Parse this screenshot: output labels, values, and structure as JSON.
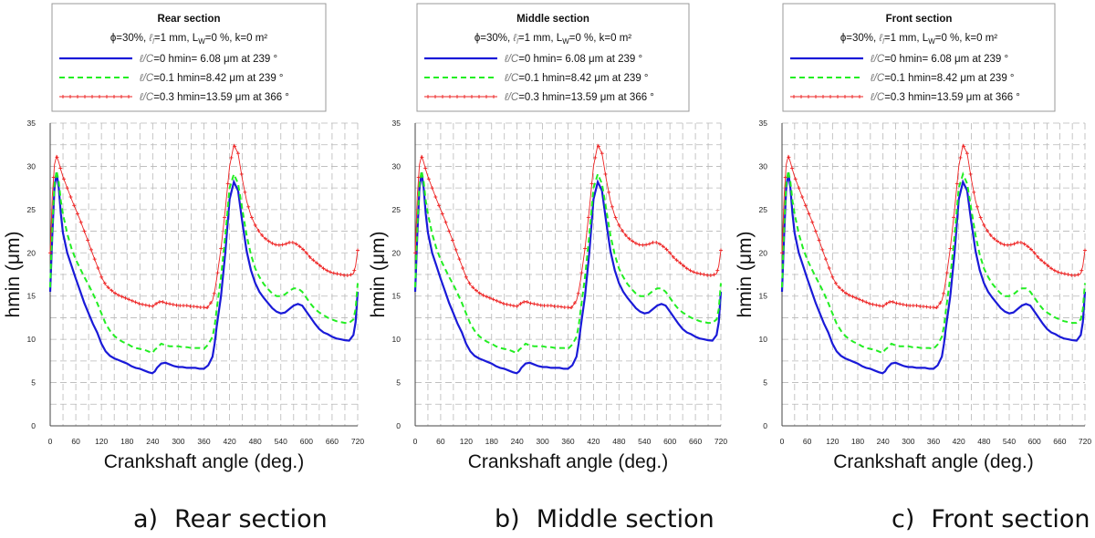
{
  "chart_data": [
    {
      "type": "line",
      "panel": "a",
      "title": "Rear section",
      "subtitle": "ϕ=30%, ℓl=1 mm, LW=0 %, k=0 m²",
      "subtitle_parts": {
        "phi": "ϕ=30%, ",
        "l_sym": "ℓ",
        "l_sub": "l",
        "l_val": "=1 mm, L",
        "lw_sub": "W",
        "rest": "=0 %, k=0 m²"
      },
      "xlabel": "Crankshaft angle (deg.)",
      "ylabel": "hmin (μm)",
      "xlim": [
        0,
        720
      ],
      "ylim": [
        0,
        35
      ],
      "xticks": [
        0,
        60,
        120,
        180,
        240,
        300,
        360,
        420,
        480,
        540,
        600,
        660,
        720
      ],
      "yticks": [
        0,
        5,
        10,
        15,
        20,
        25,
        30,
        35
      ],
      "grid": true,
      "legend_position": "top",
      "caption": {
        "letter": "a)",
        "text": "Rear section"
      },
      "series": [
        {
          "name": "ℓ/C=0",
          "legend": {
            "sym": "ℓ/C",
            "val": "=0",
            "info": "hmin= 6.08 μm at 239 °"
          },
          "color": "#1a1ad8",
          "style": "solid",
          "x": [
            0,
            5,
            10,
            15,
            20,
            25,
            30,
            40,
            50,
            60,
            70,
            80,
            90,
            100,
            110,
            120,
            130,
            140,
            150,
            160,
            170,
            180,
            190,
            200,
            210,
            220,
            230,
            239,
            245,
            250,
            260,
            270,
            280,
            290,
            300,
            310,
            320,
            330,
            340,
            350,
            360,
            370,
            380,
            385,
            390,
            400,
            410,
            420,
            430,
            440,
            450,
            460,
            470,
            480,
            490,
            500,
            510,
            520,
            530,
            540,
            550,
            560,
            570,
            580,
            590,
            600,
            610,
            620,
            630,
            640,
            650,
            660,
            670,
            680,
            690,
            700,
            710,
            715,
            720
          ],
          "y": [
            15.5,
            22,
            27.5,
            29.3,
            27.5,
            24.5,
            22.3,
            20,
            18.5,
            17,
            15.6,
            14.2,
            13,
            11.8,
            10.8,
            9.5,
            8.6,
            8.1,
            7.8,
            7.6,
            7.4,
            7.2,
            6.9,
            6.7,
            6.6,
            6.4,
            6.2,
            6.08,
            6.3,
            6.7,
            7.2,
            7.3,
            7.1,
            6.9,
            6.8,
            6.8,
            6.7,
            6.7,
            6.7,
            6.6,
            6.6,
            7,
            8,
            9.5,
            11.5,
            15,
            20,
            26.2,
            28.2,
            27.2,
            23.5,
            20.2,
            18,
            16.5,
            15.5,
            14.8,
            14.2,
            13.6,
            13.2,
            13,
            13.1,
            13.5,
            13.9,
            14.1,
            13.9,
            13.2,
            12.5,
            11.8,
            11.2,
            10.8,
            10.6,
            10.3,
            10.1,
            10,
            9.9,
            9.85,
            10.5,
            12,
            15.5
          ]
        },
        {
          "name": "ℓ/C=0.1",
          "legend": {
            "sym": "ℓ/C",
            "val": "=0.1",
            "info": "hmin=8.42 μm at  239 °"
          },
          "color": "#22ee22",
          "style": "dashed",
          "x": [
            0,
            5,
            10,
            15,
            20,
            25,
            30,
            40,
            50,
            60,
            70,
            80,
            90,
            100,
            110,
            120,
            130,
            140,
            150,
            160,
            170,
            180,
            190,
            200,
            210,
            220,
            230,
            239,
            245,
            250,
            260,
            270,
            280,
            290,
            300,
            310,
            320,
            330,
            340,
            350,
            360,
            370,
            380,
            385,
            390,
            400,
            410,
            420,
            430,
            440,
            450,
            460,
            470,
            480,
            490,
            500,
            510,
            520,
            530,
            540,
            550,
            560,
            570,
            580,
            590,
            600,
            610,
            620,
            630,
            640,
            650,
            660,
            670,
            680,
            690,
            700,
            710,
            715,
            720
          ],
          "y": [
            16,
            23,
            28,
            29.5,
            28.2,
            26,
            24.5,
            22.2,
            20.5,
            19.2,
            18.2,
            17.2,
            16.3,
            15.3,
            14.2,
            13,
            11.8,
            11,
            10.4,
            10,
            9.7,
            9.5,
            9.2,
            9,
            8.9,
            8.8,
            8.6,
            8.42,
            8.8,
            9,
            9.5,
            9.3,
            9.2,
            9.2,
            9.2,
            9.1,
            9.1,
            9,
            9,
            9,
            8.9,
            9.4,
            10.3,
            11.5,
            13.5,
            17.2,
            22,
            27.5,
            29.1,
            28,
            25,
            22,
            19.8,
            18.2,
            17.2,
            16.4,
            15.8,
            15.3,
            15,
            15,
            15.2,
            15.6,
            15.9,
            15.9,
            15.5,
            14.8,
            14.1,
            13.5,
            13.1,
            12.8,
            12.5,
            12.3,
            12.1,
            12,
            11.9,
            11.9,
            12.3,
            13.5,
            16.5
          ]
        },
        {
          "name": "ℓ/C=0.3",
          "legend": {
            "sym": "ℓ/C",
            "val": "=0.3",
            "info": "hmin=13.59 μm  at 366 °"
          },
          "color": "#ee2222",
          "style": "dotted-markers",
          "x": [
            0,
            5,
            10,
            15,
            20,
            25,
            30,
            40,
            50,
            60,
            70,
            80,
            90,
            100,
            110,
            120,
            130,
            140,
            150,
            160,
            170,
            180,
            190,
            200,
            210,
            220,
            230,
            239,
            245,
            250,
            260,
            270,
            280,
            290,
            300,
            310,
            320,
            330,
            340,
            350,
            360,
            366,
            370,
            380,
            385,
            390,
            400,
            410,
            420,
            430,
            440,
            450,
            460,
            470,
            480,
            490,
            500,
            510,
            520,
            530,
            540,
            550,
            560,
            570,
            580,
            590,
            600,
            610,
            620,
            630,
            640,
            650,
            660,
            670,
            680,
            690,
            700,
            710,
            715,
            720
          ],
          "y": [
            20,
            26.5,
            30.2,
            31.2,
            30.5,
            29.6,
            28.8,
            27.5,
            26.2,
            25,
            23.8,
            22.5,
            21.2,
            19.8,
            18.5,
            17.2,
            16.3,
            15.8,
            15.4,
            15.1,
            14.9,
            14.7,
            14.5,
            14.3,
            14.1,
            14,
            13.9,
            13.8,
            14,
            14.2,
            14.4,
            14.2,
            14.1,
            14,
            13.9,
            13.9,
            13.9,
            13.8,
            13.8,
            13.7,
            13.7,
            13.59,
            13.8,
            14.5,
            15.5,
            17,
            20.5,
            25,
            30,
            32.5,
            31.5,
            28.5,
            26,
            24.3,
            23.2,
            22.4,
            21.8,
            21.4,
            21.1,
            20.9,
            20.9,
            21,
            21.2,
            21.2,
            20.9,
            20.5,
            20,
            19.4,
            19,
            18.6,
            18.2,
            17.9,
            17.7,
            17.6,
            17.5,
            17.4,
            17.4,
            17.6,
            18.5,
            20.3
          ]
        }
      ]
    },
    {
      "type": "line",
      "panel": "b",
      "title": "Middle section",
      "subtitle": "ϕ=30%, ℓl=1 mm, LW=0 %, k=0 m²",
      "subtitle_parts": {
        "phi": "ϕ=30%, ",
        "l_sym": "ℓ",
        "l_sub": "l",
        "l_val": "=1 mm, L",
        "lw_sub": "W",
        "rest": "=0 %, k=0 m²"
      },
      "xlabel": "Crankshaft angle (deg.)",
      "ylabel": "hmin (μm)",
      "xlim": [
        0,
        720
      ],
      "ylim": [
        0,
        35
      ],
      "xticks": [
        0,
        60,
        120,
        180,
        240,
        300,
        360,
        420,
        480,
        540,
        600,
        660,
        720
      ],
      "yticks": [
        0,
        5,
        10,
        15,
        20,
        25,
        30,
        35
      ],
      "grid": true,
      "legend_position": "top",
      "caption": {
        "letter": "b)",
        "text": "Middle section"
      },
      "series": "same-as-panel-a"
    },
    {
      "type": "line",
      "panel": "c",
      "title": "Front section",
      "subtitle": "ϕ=30%, ℓl=1 mm, LW=0 %, k=0 m²",
      "subtitle_parts": {
        "phi": "ϕ=30%, ",
        "l_sym": "ℓ",
        "l_sub": "l",
        "l_val": "=1 mm, L",
        "lw_sub": "W",
        "rest": "=0 %, k=0 m²"
      },
      "xlabel": "Crankshaft angle (deg.)",
      "ylabel": "hmin (μm)",
      "xlim": [
        0,
        720
      ],
      "ylim": [
        0,
        35
      ],
      "xticks": [
        0,
        60,
        120,
        180,
        240,
        300,
        360,
        420,
        480,
        540,
        600,
        660,
        720
      ],
      "yticks": [
        0,
        5,
        10,
        15,
        20,
        25,
        30,
        35
      ],
      "grid": true,
      "legend_position": "top",
      "caption": {
        "letter": "c)",
        "text": "Front section"
      },
      "series": "same-as-panel-a"
    }
  ]
}
